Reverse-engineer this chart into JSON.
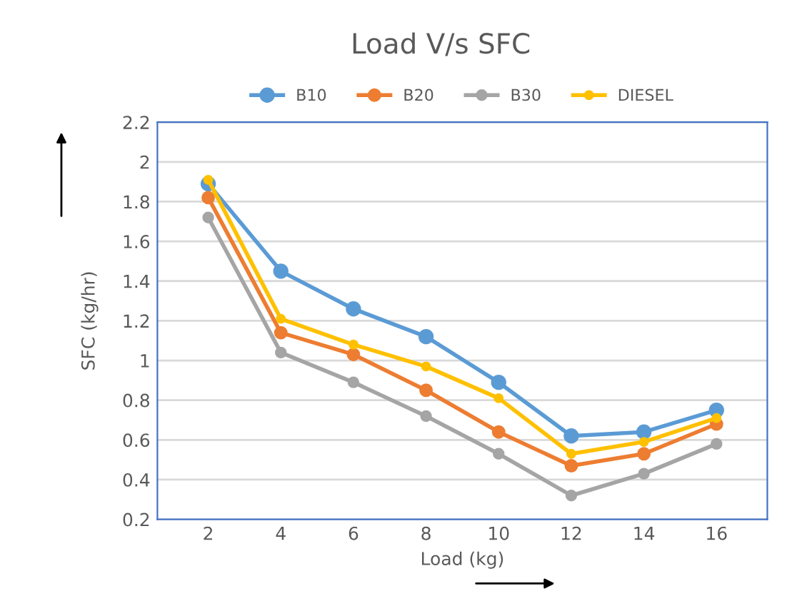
{
  "chart_data": {
    "type": "line",
    "title": "Load V/s SFC",
    "xlabel": "Load (kg)",
    "ylabel": "SFC (kg/hr)",
    "categories": [
      "2",
      "4",
      "6",
      "8",
      "10",
      "12",
      "14",
      "16"
    ],
    "series": [
      {
        "name": "B10",
        "color": "#5b9bd5",
        "values": [
          1.89,
          1.45,
          1.26,
          1.12,
          0.89,
          0.62,
          0.64,
          0.75
        ]
      },
      {
        "name": "B20",
        "color": "#ed7d31",
        "values": [
          1.82,
          1.14,
          1.03,
          0.85,
          0.64,
          0.47,
          0.53,
          0.68
        ]
      },
      {
        "name": "B30",
        "color": "#a5a5a5",
        "values": [
          1.72,
          1.04,
          0.89,
          0.72,
          0.53,
          0.32,
          0.43,
          0.58
        ]
      },
      {
        "name": "DIESEL",
        "color": "#ffc000",
        "values": [
          1.91,
          1.21,
          1.08,
          0.97,
          0.81,
          0.53,
          0.59,
          0.71
        ]
      }
    ],
    "ylim": [
      0.2,
      2.2
    ],
    "yticks": [
      0.2,
      0.4,
      0.6,
      0.8,
      1,
      1.2,
      1.4,
      1.6,
      1.8,
      2,
      2.2
    ],
    "grid": "y",
    "legend": "top",
    "marker": "circle",
    "line_style": "solid"
  }
}
